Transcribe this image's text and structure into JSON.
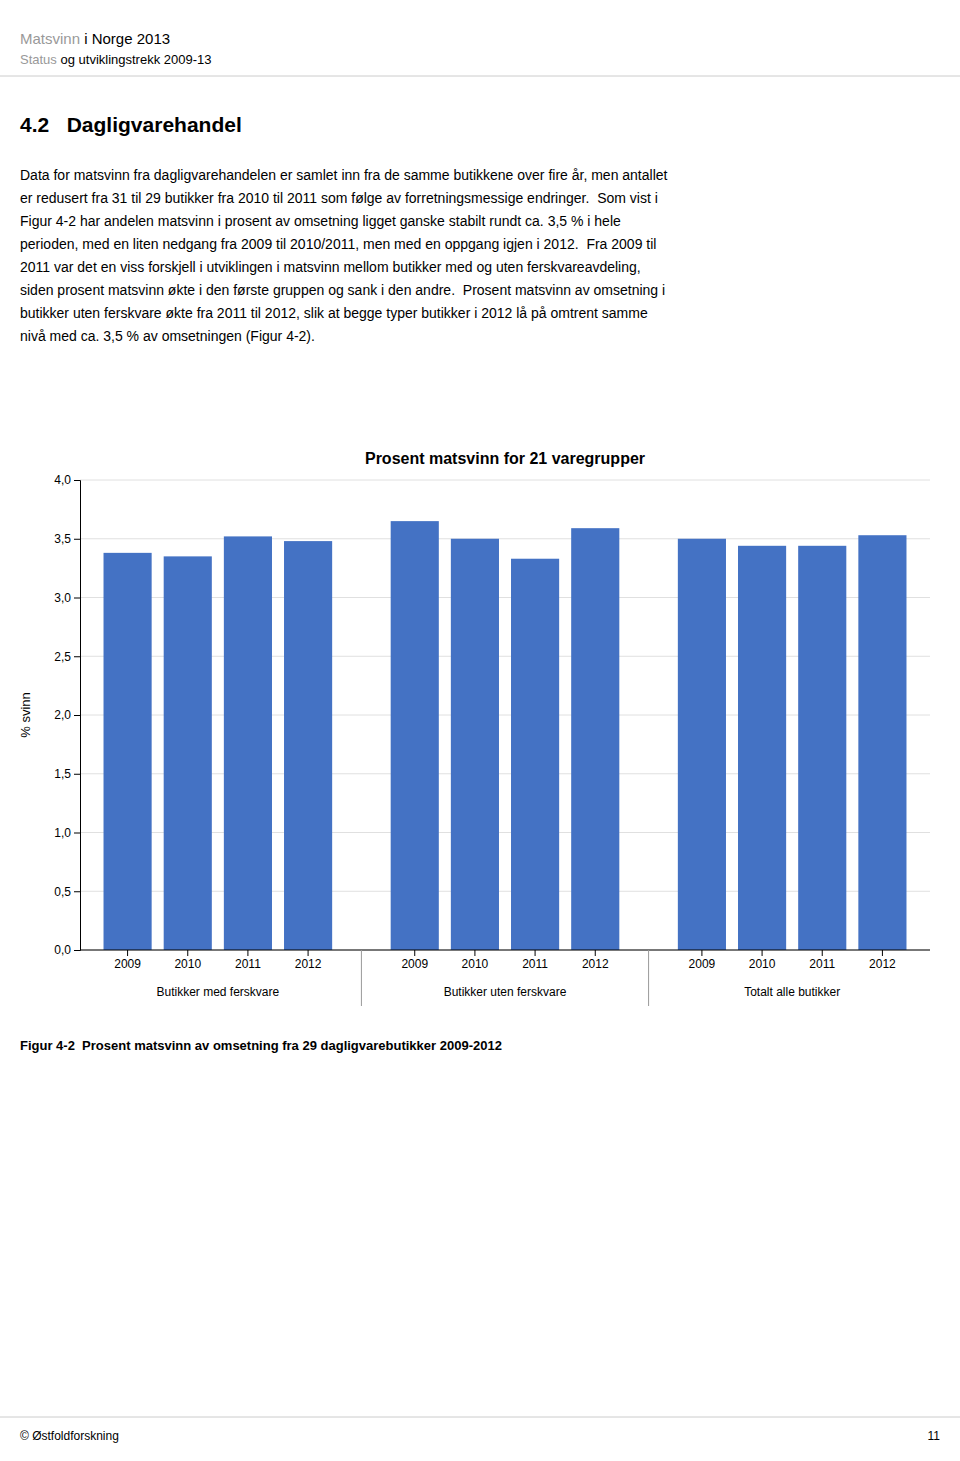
{
  "header_title_grey": "Matsvinn",
  "header_title_black": " i Norge 2013",
  "header_subtitle_grey": "Status",
  "header_subtitle_black": " og utviklingstrekk 2009-13",
  "section_title": "4.2   Dagligvarehandel",
  "body_lines": [
    "Data for matsvinn fra dagligvarehandelen er samlet inn fra de samme butikkene over fire år, men antallet",
    "er redusert fra 31 til 29 butikker fra 2010 til 2011 som følge av forretningsmessige endringer.  Som vist i",
    "Figur 4-2 har andelen matsvinn i prosent av omsetning ligget ganske stabilt rundt ca. 3,5 % i hele",
    "perioden, med en liten nedgang fra 2009 til 2010/2011, men med en oppgang igjen i 2012.  Fra 2009 til",
    "2011 var det en viss forskjell i utviklingen i matsvinn mellom butikker med og uten ferskvareavdeling,",
    "siden prosent matsvinn økte i den første gruppen og sank i den andre.  Prosent matsvinn av omsetning i",
    "butikker uten ferskvare økte fra 2011 til 2012, slik at begge typer butikker i 2012 lå på omtrent samme",
    "nivå med ca. 3,5 % av omsetningen (Figur 4-2)."
  ],
  "caption": "Figur 4-2  Prosent matsvinn av omsetning fra 29 dagligvarebutikker 2009-2012",
  "footer_text": "© Østfoldforskning",
  "footer_page": "11",
  "chart_data": {
    "type": "bar",
    "title": "Prosent matsvinn for 21 varegrupper",
    "ylabel": "% svinn",
    "categories": [
      "2009",
      "2010",
      "2011",
      "2012",
      "2009",
      "2010",
      "2011",
      "2012",
      "2009",
      "2010",
      "2011",
      "2012"
    ],
    "values": [
      3.38,
      3.35,
      3.52,
      3.48,
      3.65,
      3.5,
      3.33,
      3.59,
      3.5,
      3.44,
      3.44,
      3.53
    ],
    "group_labels": [
      "Butikker med ferskvare",
      "Butikker uten ferskvare",
      "Totalt alle butikker"
    ],
    "color": "#4472C4",
    "ylim": [
      0.0,
      4.0
    ],
    "yticks": [
      {
        "value": 0.0,
        "label": "0,0"
      },
      {
        "value": 0.5,
        "label": "0,5"
      },
      {
        "value": 1.0,
        "label": "1,0"
      },
      {
        "value": 1.5,
        "label": "1,5"
      },
      {
        "value": 2.0,
        "label": "2,0"
      },
      {
        "value": 2.5,
        "label": "2,5"
      },
      {
        "value": 3.0,
        "label": "3,0"
      },
      {
        "value": 3.5,
        "label": "3,5"
      },
      {
        "value": 4.0,
        "label": "4,0"
      }
    ],
    "grid": true
  }
}
